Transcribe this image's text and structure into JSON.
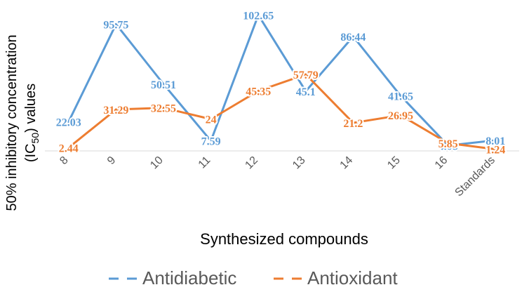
{
  "chart_data": {
    "type": "line",
    "categories": [
      "8",
      "9",
      "10",
      "11",
      "12",
      "13",
      "14",
      "15",
      "16",
      "Standards"
    ],
    "series": [
      {
        "name": "Antidiabetic",
        "color": "#5B9BD5",
        "values": [
          22.03,
          95.75,
          50.51,
          7.59,
          102.65,
          45.1,
          86.44,
          41.65,
          4.08,
          8.01
        ],
        "labels": [
          "22.03",
          "95.75",
          "50.51",
          "7.59",
          "102.65",
          "45.1",
          "86.44",
          "41.65",
          "4.08",
          "8.01"
        ]
      },
      {
        "name": "Antioxidant",
        "color": "#ED7D31",
        "values": [
          2.44,
          31.29,
          32.55,
          24,
          45.35,
          57.79,
          21.2,
          26.95,
          5.85,
          1.24
        ],
        "labels": [
          "2.44",
          "31.29",
          "32.55",
          "24",
          "45.35",
          "57.79",
          "21.2",
          "26.95",
          "5.85",
          "1.24"
        ]
      }
    ],
    "title": "",
    "xlabel": "Synthesized compounds",
    "ylabel_line1": "50% inhibitory concentration",
    "ylabel_line2_prefix": "(IC",
    "ylabel_line2_sub": "50",
    "ylabel_line2_suffix": ") values",
    "ylim": [
      0,
      105
    ],
    "y_axis_visible": false,
    "grid": false,
    "legend_position": "bottom",
    "legend_style": "dashed"
  }
}
